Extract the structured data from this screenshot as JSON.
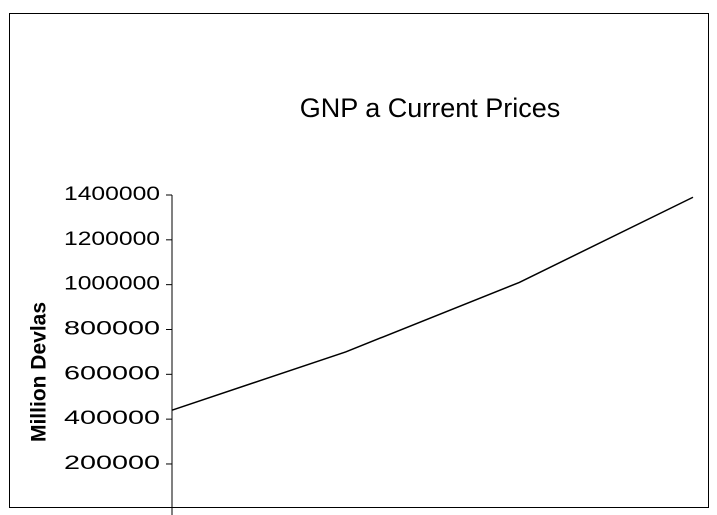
{
  "chart_data": {
    "type": "line",
    "title": "GNP a Current Prices",
    "ylabel": "Million Devlas",
    "categories": [
      null,
      null,
      null,
      null
    ],
    "series": [
      {
        "name": null,
        "color": "#000000",
        "values": [
          440000,
          700000,
          1010000,
          1390000
        ]
      }
    ],
    "ylim": [
      0,
      1400000
    ],
    "yticks": [
      200000,
      400000,
      600000,
      800000,
      1000000,
      1200000,
      1400000
    ],
    "grid": false
  }
}
